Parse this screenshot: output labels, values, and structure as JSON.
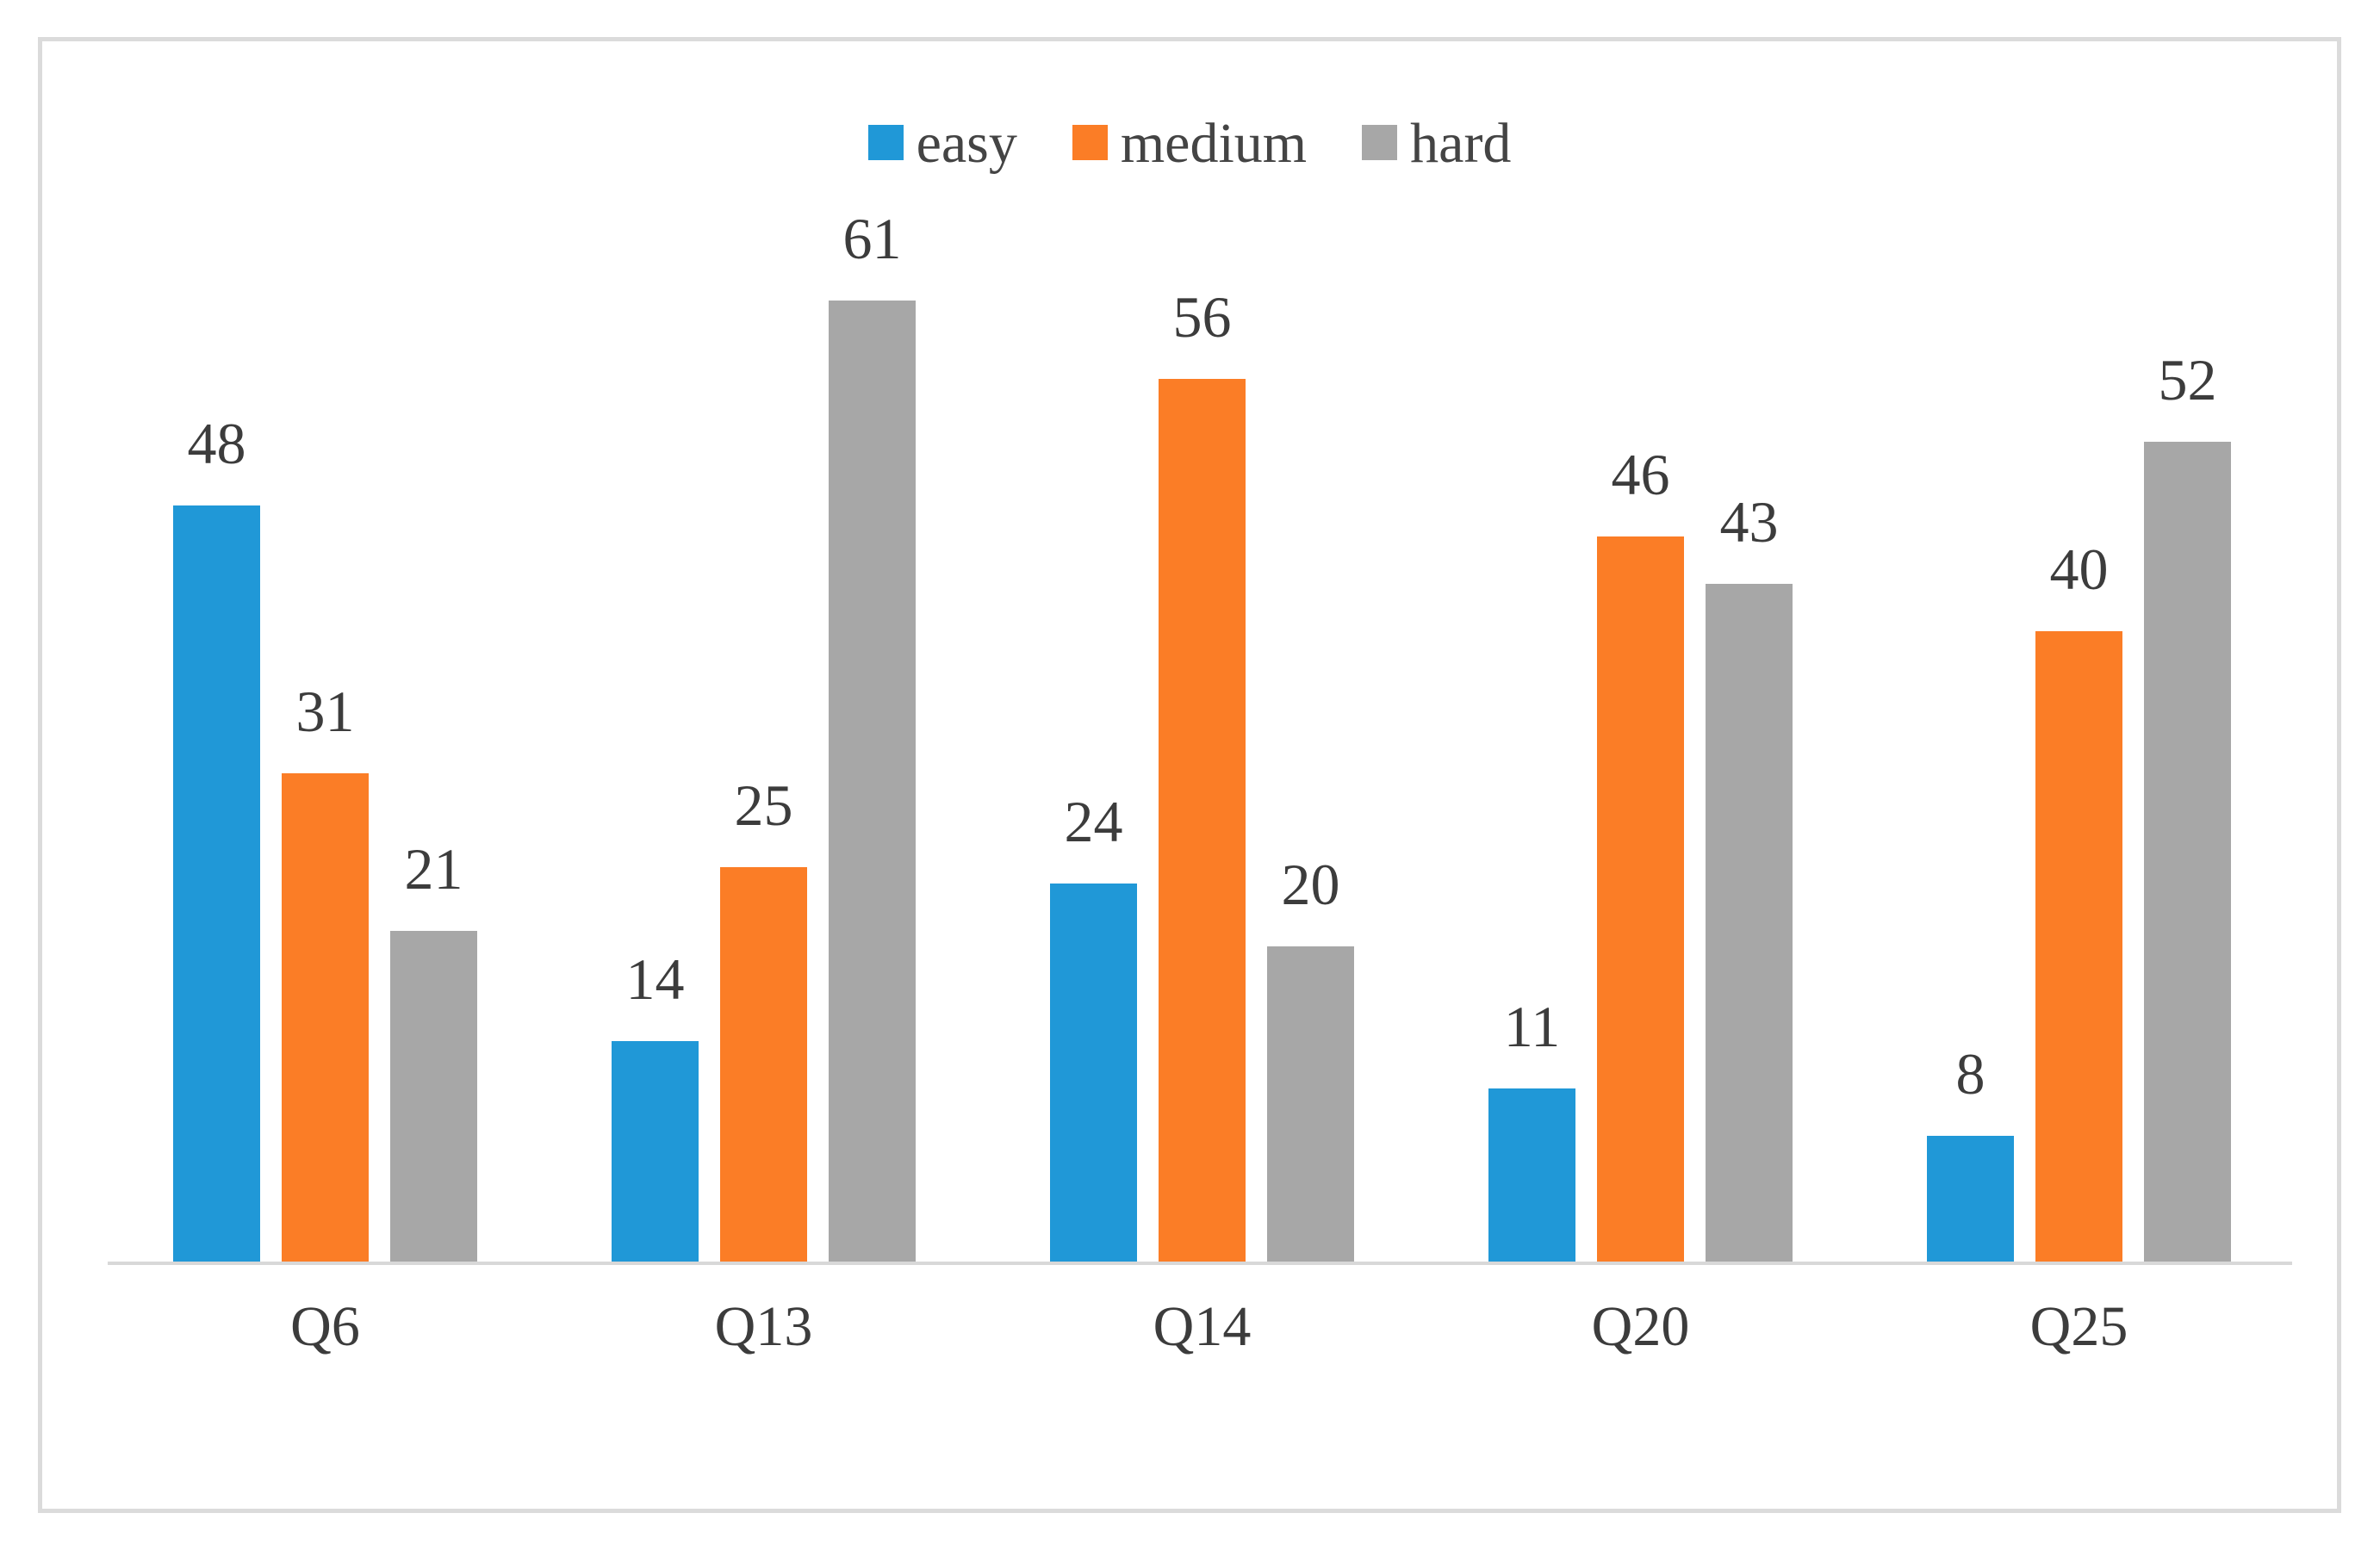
{
  "chart_data": {
    "type": "bar",
    "categories": [
      "Q6",
      "Q13",
      "Q14",
      "Q20",
      "Q25"
    ],
    "series": [
      {
        "name": "easy",
        "color": "#2098d7",
        "values": [
          48,
          14,
          24,
          11,
          8
        ]
      },
      {
        "name": "medium",
        "color": "#fb7d26",
        "values": [
          31,
          25,
          56,
          46,
          40
        ]
      },
      {
        "name": "hard",
        "color": "#a7a7a7",
        "values": [
          21,
          61,
          20,
          43,
          52
        ]
      }
    ],
    "title": "",
    "xlabel": "",
    "ylabel": "",
    "ylim": [
      0,
      65
    ],
    "grid": false,
    "legend_position": "top",
    "bar_labels": true,
    "axis_line_color": "#d8d8d8",
    "frame_border_color": "#dbdbdb",
    "label_text_color": "#3c3c3c"
  }
}
